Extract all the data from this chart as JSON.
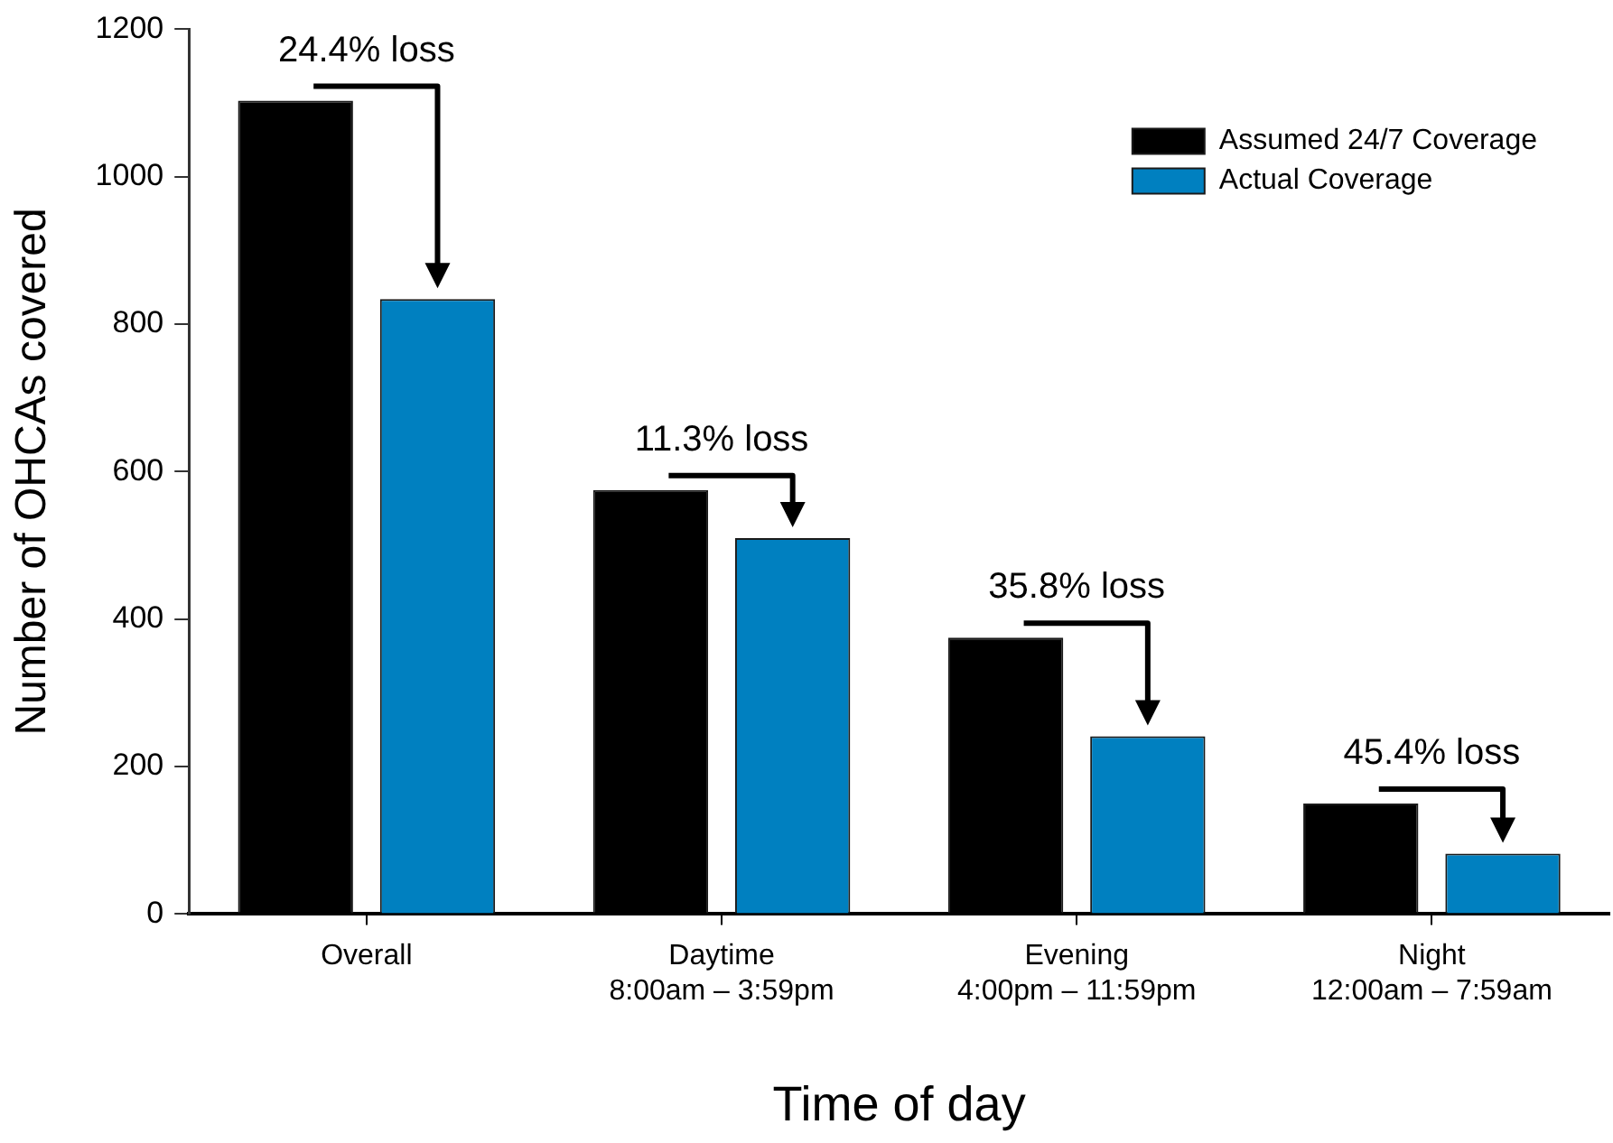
{
  "chart_data": {
    "type": "bar",
    "xlabel": "Time of day",
    "ylabel": "Number of OHCAs covered",
    "categories": [
      "Overall",
      "Daytime\n8:00am – 3:59pm",
      "Evening\n4:00pm – 11:59pm",
      "Night\n12:00am – 7:59am"
    ],
    "series": [
      {
        "name": "Assumed 24/7 Coverage",
        "color": "#000000",
        "values": [
          1103,
          575,
          375,
          150
        ]
      },
      {
        "name": "Actual Coverage",
        "color": "#0080c0",
        "values": [
          834,
          510,
          241,
          82
        ]
      }
    ],
    "ylim": [
      0,
      1200
    ],
    "yticks": [
      0,
      200,
      400,
      600,
      800,
      1000,
      1200
    ],
    "legend": "top right",
    "annotations": [
      "24.4% loss",
      "11.3% loss",
      "35.8% loss",
      "45.4% loss"
    ]
  }
}
